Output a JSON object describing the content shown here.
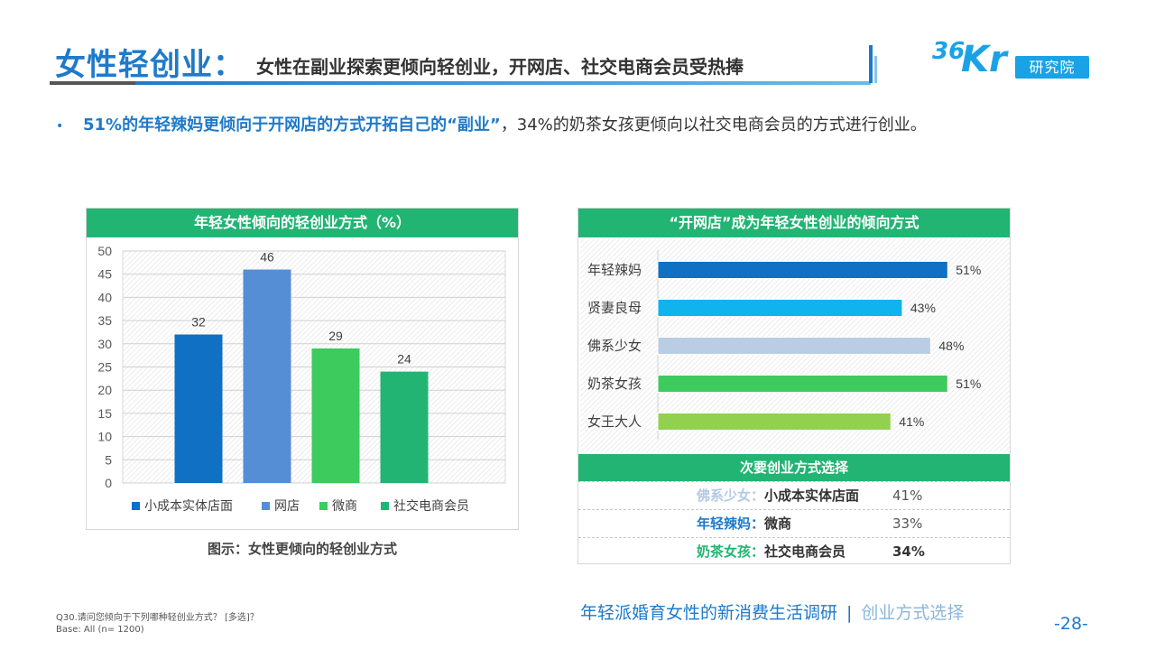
{
  "header": {
    "title_main": "女性轻创业：",
    "title_sub": "女性在副业探索更倾向轻创业，开网店、社交电商会员受热捧"
  },
  "logo": {
    "brand_num": "36",
    "brand_kr": "Kr",
    "box_text": "研究院"
  },
  "bullet": {
    "marker": "•",
    "highlight": "51%的年轻辣妈更倾向于开网店的方式开拓自己的“副业”",
    "rest": "，34%的奶茶女孩更倾向以社交电商会员的方式进行创业。"
  },
  "left_chart": {
    "header": "年轻女性倾向的轻创业方式（%）",
    "caption": "图示：女性更倾向的轻创业方式"
  },
  "right_chart": {
    "header": "“开网店”成为年轻女性创业的倾向方式",
    "secondary": {
      "header": "次要创业方式选择",
      "rows": [
        {
          "segment": "佛系少女：",
          "method": "小成本实体店面",
          "value": "41%",
          "segment_color": "#b4c8e6",
          "value_bold": false
        },
        {
          "segment": "年轻辣妈：",
          "method": "微商",
          "value": "33%",
          "segment_color": "#1f7ac9",
          "value_bold": false
        },
        {
          "segment": "奶茶女孩：",
          "method": "社交电商会员",
          "value": "34%",
          "segment_color": "#22b473",
          "value_bold": true
        }
      ]
    }
  },
  "chart_data": [
    {
      "type": "bar",
      "title": "年轻女性倾向的轻创业方式（%）",
      "categories": [
        "小成本实体店面",
        "网店",
        "微商",
        "社交电商会员"
      ],
      "values": [
        32,
        46,
        29,
        24
      ],
      "colors": [
        "#0f70c4",
        "#558ed5",
        "#3ecb5d",
        "#22b473"
      ],
      "ylim": [
        0,
        50
      ],
      "yticks": [
        0,
        5,
        10,
        15,
        20,
        25,
        30,
        35,
        40,
        45,
        50
      ],
      "legend_position": "bottom",
      "xlabel": "",
      "ylabel": ""
    },
    {
      "type": "bar",
      "orientation": "horizontal",
      "title": "“开网店”成为年轻女性创业的倾向方式",
      "categories": [
        "年轻辣妈",
        "贤妻良母",
        "佛系少女",
        "奶茶女孩",
        "女王大人"
      ],
      "values": [
        51,
        43,
        48,
        51,
        41
      ],
      "value_labels": [
        "51%",
        "43%",
        "48%",
        "51%",
        "41%"
      ],
      "colors": [
        "#0f70c4",
        "#0fb3ee",
        "#b9cde5",
        "#3ecb5d",
        "#92d050"
      ],
      "xlim": [
        0,
        60
      ]
    }
  ],
  "footer": {
    "question": "Q30.请问您倾向于下列哪种轻创业方式？ [多选]？",
    "base": "Base: All (n= 1200)",
    "report_title": "年轻派婚育女性的新消费生活调研",
    "separator": "|",
    "section": "创业方式选择",
    "page": "-28-"
  }
}
